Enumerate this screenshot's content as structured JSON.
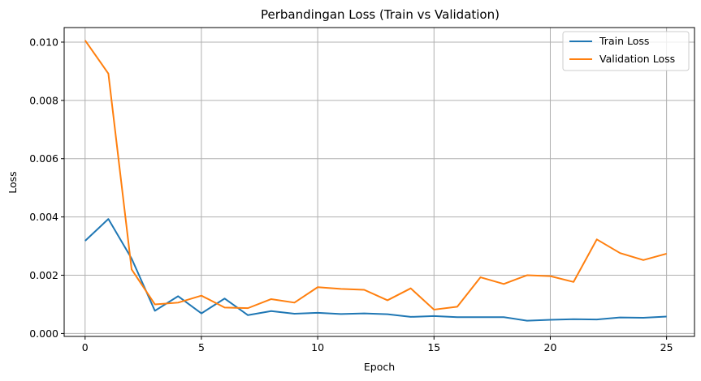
{
  "chart_data": {
    "type": "line",
    "title": "Perbandingan Loss (Train vs Validation)",
    "xlabel": "Epoch",
    "ylabel": "Loss",
    "xlim": [
      -0.9,
      26.2
    ],
    "ylim": [
      -0.0001,
      0.0105
    ],
    "x_ticks": [
      0,
      5,
      10,
      15,
      20,
      25
    ],
    "y_ticks": [
      0.0,
      0.002,
      0.004,
      0.006,
      0.008,
      0.01
    ],
    "y_tick_labels": [
      "0.000",
      "0.002",
      "0.004",
      "0.006",
      "0.008",
      "0.010"
    ],
    "grid": true,
    "legend_position": "top-right",
    "x": [
      0,
      1,
      2,
      3,
      4,
      5,
      6,
      7,
      8,
      9,
      10,
      11,
      12,
      13,
      14,
      15,
      16,
      17,
      18,
      19,
      20,
      21,
      22,
      23,
      24,
      25
    ],
    "series": [
      {
        "name": "Train Loss",
        "color": "#1f77b4",
        "values": [
          0.00318,
          0.00393,
          0.00257,
          0.00078,
          0.00128,
          0.00069,
          0.0012,
          0.00063,
          0.00077,
          0.00068,
          0.00071,
          0.00067,
          0.00069,
          0.00066,
          0.00057,
          0.0006,
          0.00056,
          0.00056,
          0.00056,
          0.00044,
          0.00047,
          0.00049,
          0.00048,
          0.00055,
          0.00054,
          0.00058
        ]
      },
      {
        "name": "Validation Loss",
        "color": "#ff7f0e",
        "values": [
          0.01006,
          0.00892,
          0.0022,
          0.001,
          0.00106,
          0.0013,
          0.00089,
          0.00087,
          0.00118,
          0.00106,
          0.00159,
          0.00153,
          0.0015,
          0.00114,
          0.00155,
          0.00082,
          0.00092,
          0.00193,
          0.0017,
          0.002,
          0.00197,
          0.00177,
          0.00323,
          0.00276,
          0.00252,
          0.00274
        ]
      }
    ]
  }
}
